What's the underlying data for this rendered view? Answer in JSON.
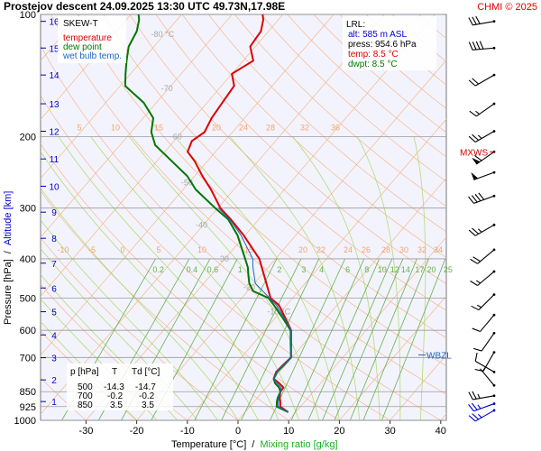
{
  "header": {
    "title": "Prostejov   descent   24.09.2025 13:30 UTC  49.73N,17.98E",
    "brand": "CHMI © 2025"
  },
  "legend": {
    "title": "SKEW-T",
    "items": [
      {
        "label": "temperature",
        "color": "#dd0000"
      },
      {
        "label": "dew point",
        "color": "#007700"
      },
      {
        "label": "wet bulb temp.",
        "color": "#1a66cc"
      }
    ]
  },
  "info": {
    "lines": [
      {
        "text": "LRL:",
        "color": "#000000"
      },
      {
        "text": "alt: 585 m ASL",
        "color": "#0000cc"
      },
      {
        "text": "press: 954.6 hPa",
        "color": "#000000"
      },
      {
        "text": "temp: 8.5 °C",
        "color": "#dd0000"
      },
      {
        "text": "dwpt: 8.5 °C",
        "color": "#007700"
      }
    ]
  },
  "table": {
    "headers": [
      "p [hPa]",
      "T",
      "Td [°C]"
    ],
    "rows": [
      [
        "500",
        "-14.3",
        "-14.7"
      ],
      [
        "700",
        "-0.2",
        "-0.2"
      ],
      [
        "850",
        "3.5",
        "3.5"
      ]
    ]
  },
  "markers": {
    "mxws": "MXWS",
    "wbzl": "WBZL"
  },
  "colors": {
    "temperature": "#dd0000",
    "dewpoint": "#007700",
    "wetbulb": "#1a66cc",
    "isotherm": "#f2b98c",
    "dry_adiabat": "#f4a46a",
    "moist_adiabat": "#a8d85a",
    "mixing_ratio": "#66b34a",
    "plot_bg": "#f3f3fd"
  },
  "chart_data": {
    "type": "line",
    "title": "Prostejov   descent   24.09.2025 13:30 UTC  49.73N,17.98E",
    "xlabel": "Temperature [°C]",
    "xlabel_sep": "/",
    "xlabel2": "Mixing ratio [g/kg]",
    "ylabel": "Pressure [hPa]",
    "ylabel_sep": "/",
    "ylabel2": "Altitude [km]",
    "y_scale": "log",
    "ylim": [
      1000,
      100
    ],
    "xlim_bottom": [
      -35,
      45
    ],
    "x_ticks": [
      -30,
      -20,
      -10,
      0,
      10,
      20,
      30,
      40
    ],
    "p_ticks": [
      100,
      200,
      300,
      400,
      500,
      600,
      700,
      850,
      925,
      1000
    ],
    "p_gridlines": [
      100,
      200,
      300,
      400,
      500,
      600,
      700,
      850,
      925,
      1000
    ],
    "alt_ticks_km": [
      {
        "km": 1,
        "p": 899
      },
      {
        "km": 2,
        "p": 795
      },
      {
        "km": 3,
        "p": 701
      },
      {
        "km": 4,
        "p": 616
      },
      {
        "km": 5,
        "p": 540
      },
      {
        "km": 6,
        "p": 472
      },
      {
        "km": 7,
        "p": 410
      },
      {
        "km": 8,
        "p": 356
      },
      {
        "km": 9,
        "p": 307
      },
      {
        "km": 10,
        "p": 265
      },
      {
        "km": 11,
        "p": 227
      },
      {
        "km": 12,
        "p": 194
      },
      {
        "km": 13,
        "p": 166
      },
      {
        "km": 14,
        "p": 141
      },
      {
        "km": 15,
        "p": 121
      },
      {
        "km": 16,
        "p": 104
      }
    ],
    "isotherm_labels": [
      -80,
      -70,
      -60,
      -50,
      -40,
      -30,
      -20,
      -10
    ],
    "isotherm_label_unit": "°C",
    "theta_labels_200": [
      5,
      10,
      15,
      20,
      24,
      28,
      32,
      36
    ],
    "theta_labels_200b": [
      22,
      24,
      26,
      28,
      30,
      32,
      34
    ],
    "theta_labels_400": [
      -10,
      -5,
      0,
      5,
      10,
      15,
      20,
      22,
      24,
      26,
      28,
      30,
      32,
      34
    ],
    "mixing_ratio_labels": [
      "0.2",
      "0.4",
      "0.6",
      "1",
      "2",
      "3",
      "4",
      "6",
      "8",
      "10",
      "12",
      "14",
      "17",
      "20",
      "25"
    ],
    "mixing_ratio_values": [
      0.2,
      0.4,
      0.6,
      1,
      2,
      3,
      4,
      6,
      8,
      10,
      12,
      14,
      17,
      20,
      25
    ],
    "mxws_p": 218,
    "wbzl_p": 690,
    "series": [
      {
        "name": "temperature",
        "color": "#dd0000",
        "points": [
          [
            954.6,
            8.5
          ],
          [
            925,
            6.0
          ],
          [
            900,
            5.2
          ],
          [
            880,
            4.4
          ],
          [
            850,
            3.5
          ],
          [
            830,
            3.4
          ],
          [
            810,
            1.8
          ],
          [
            790,
            0.0
          ],
          [
            760,
            -0.7
          ],
          [
            730,
            -0.5
          ],
          [
            700,
            -0.2
          ],
          [
            650,
            -2.4
          ],
          [
            600,
            -4.8
          ],
          [
            560,
            -8.0
          ],
          [
            520,
            -11.5
          ],
          [
            500,
            -14.3
          ],
          [
            450,
            -18.5
          ],
          [
            400,
            -23.2
          ],
          [
            350,
            -30.3
          ],
          [
            320,
            -35.5
          ],
          [
            300,
            -39.5
          ],
          [
            270,
            -44.5
          ],
          [
            250,
            -48.5
          ],
          [
            230,
            -52.5
          ],
          [
            218,
            -55.5
          ],
          [
            205,
            -56.5
          ],
          [
            195,
            -55.5
          ],
          [
            180,
            -56.5
          ],
          [
            165,
            -57.0
          ],
          [
            150,
            -57.5
          ],
          [
            140,
            -60.0
          ],
          [
            130,
            -58.0
          ],
          [
            120,
            -61.0
          ],
          [
            110,
            -61.5
          ],
          [
            103,
            -63.0
          ],
          [
            100,
            -64.0
          ]
        ]
      },
      {
        "name": "dew point",
        "color": "#007700",
        "points": [
          [
            954.6,
            8.5
          ],
          [
            925,
            5.3
          ],
          [
            900,
            4.5
          ],
          [
            880,
            4.0
          ],
          [
            850,
            3.5
          ],
          [
            830,
            2.5
          ],
          [
            810,
            1.0
          ],
          [
            790,
            0.0
          ],
          [
            760,
            -0.5
          ],
          [
            730,
            -0.3
          ],
          [
            700,
            -0.2
          ],
          [
            650,
            -2.5
          ],
          [
            600,
            -4.9
          ],
          [
            560,
            -8.5
          ],
          [
            520,
            -12.5
          ],
          [
            500,
            -14.7
          ],
          [
            480,
            -19.0
          ],
          [
            460,
            -21.0
          ],
          [
            440,
            -22.5
          ],
          [
            420,
            -24.0
          ],
          [
            400,
            -26.0
          ],
          [
            350,
            -31.5
          ],
          [
            320,
            -36.0
          ],
          [
            300,
            -40.5
          ],
          [
            270,
            -47.5
          ],
          [
            250,
            -51.5
          ],
          [
            230,
            -57.0
          ],
          [
            210,
            -63.0
          ],
          [
            195,
            -66.0
          ],
          [
            180,
            -68.0
          ],
          [
            165,
            -72.5
          ],
          [
            150,
            -79.0
          ],
          [
            140,
            -81.0
          ],
          [
            130,
            -83.0
          ],
          [
            120,
            -85.0
          ],
          [
            110,
            -86.0
          ],
          [
            103,
            -87.5
          ],
          [
            100,
            -88.5
          ]
        ]
      },
      {
        "name": "wet bulb temp.",
        "color": "#1a66cc",
        "points": [
          [
            954.6,
            8.5
          ],
          [
            925,
            5.6
          ],
          [
            900,
            4.8
          ],
          [
            880,
            4.2
          ],
          [
            850,
            3.5
          ],
          [
            830,
            2.9
          ],
          [
            810,
            1.4
          ],
          [
            790,
            0.0
          ],
          [
            760,
            -0.6
          ],
          [
            730,
            -0.4
          ],
          [
            700,
            -0.2
          ],
          [
            650,
            -2.4
          ],
          [
            600,
            -4.8
          ],
          [
            560,
            -8.2
          ],
          [
            520,
            -12.0
          ],
          [
            500,
            -14.5
          ],
          [
            460,
            -19.8
          ],
          [
            420,
            -23.0
          ],
          [
            400,
            -24.5
          ],
          [
            350,
            -30.8
          ],
          [
            320,
            -35.7
          ],
          [
            300,
            -39.9
          ]
        ]
      }
    ],
    "wind_barbs": [
      {
        "p": 104,
        "dir": 260,
        "spd_kt": 30
      },
      {
        "p": 121,
        "dir": 265,
        "spd_kt": 40
      },
      {
        "p": 141,
        "dir": 240,
        "spd_kt": 20
      },
      {
        "p": 166,
        "dir": 235,
        "spd_kt": 15
      },
      {
        "p": 194,
        "dir": 240,
        "spd_kt": 25
      },
      {
        "p": 218,
        "dir": 235,
        "spd_kt": 60
      },
      {
        "p": 245,
        "dir": 250,
        "spd_kt": 50
      },
      {
        "p": 280,
        "dir": 250,
        "spd_kt": 40
      },
      {
        "p": 330,
        "dir": 240,
        "spd_kt": 25
      },
      {
        "p": 380,
        "dir": 230,
        "spd_kt": 20
      },
      {
        "p": 430,
        "dir": 230,
        "spd_kt": 15
      },
      {
        "p": 490,
        "dir": 225,
        "spd_kt": 15
      },
      {
        "p": 550,
        "dir": 220,
        "spd_kt": 10
      },
      {
        "p": 610,
        "dir": 215,
        "spd_kt": 10
      },
      {
        "p": 680,
        "dir": 210,
        "spd_kt": 10
      },
      {
        "p": 760,
        "dir": 300,
        "spd_kt": 10
      },
      {
        "p": 820,
        "dir": 320,
        "spd_kt": 5
      },
      {
        "p": 870,
        "dir": 260,
        "spd_kt": 25
      },
      {
        "p": 910,
        "dir": 250,
        "spd_kt": 25
      },
      {
        "p": 945,
        "dir": 240,
        "spd_kt": 25
      }
    ]
  }
}
